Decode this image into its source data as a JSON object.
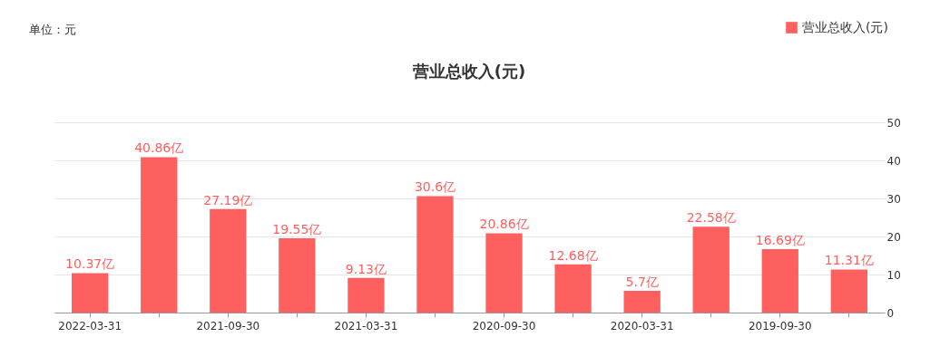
{
  "chart_data": {
    "type": "bar",
    "title": "营业总收入(元)",
    "categories": [
      "2022-03-31",
      null,
      "2021-09-30",
      null,
      "2021-03-31",
      null,
      "2020-09-30",
      null,
      "2020-03-31",
      null,
      "2019-09-30",
      null
    ],
    "series": [
      {
        "name": "营业总收入(元)",
        "color": "#fe6060",
        "values": [
          10.37,
          40.86,
          27.19,
          19.55,
          9.13,
          30.6,
          20.86,
          12.68,
          5.7,
          22.58,
          16.69,
          11.31
        ],
        "value_labels": [
          "10.37亿",
          "40.86亿",
          "27.19亿",
          "19.55亿",
          "9.13亿",
          "30.6亿",
          "20.86亿",
          "12.68亿",
          "5.7亿",
          "22.58亿",
          "16.69亿",
          "11.31亿"
        ]
      }
    ],
    "ylim": [
      0,
      50
    ],
    "yticks": [
      0,
      10,
      20,
      30,
      40,
      50
    ],
    "grid": "y",
    "legend": "top right",
    "annotations": [
      "单位：元"
    ]
  }
}
